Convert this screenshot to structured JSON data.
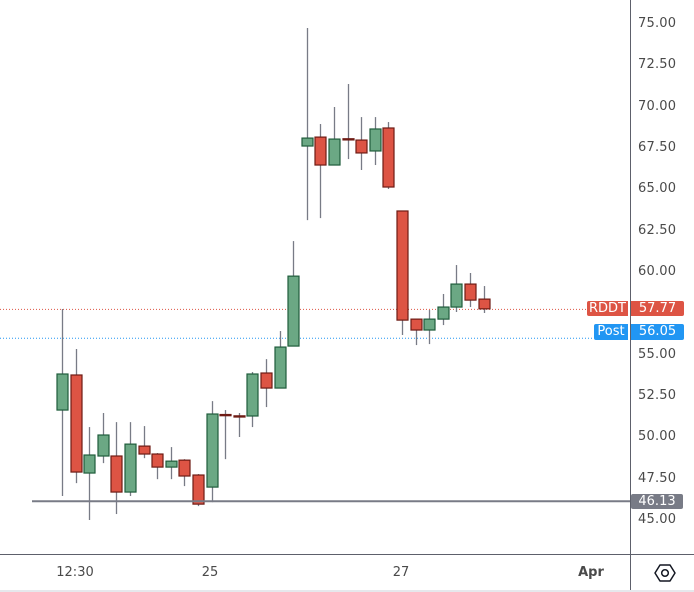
{
  "chart_data": {
    "type": "candlestick",
    "title": "",
    "symbol": "RDDT",
    "xlabel": "",
    "ylabel": "",
    "ylim": [
      44.0,
      76.0
    ],
    "grid": false,
    "y_ticks": [
      "75.00",
      "72.50",
      "70.00",
      "67.50",
      "65.00",
      "62.50",
      "60.00",
      "55.00",
      "52.50",
      "50.00",
      "47.50",
      "45.00"
    ],
    "x_ticks": [
      {
        "label": "12:30",
        "candle_index": 1
      },
      {
        "label": "25",
        "candle_index": 11
      },
      {
        "label": "27",
        "candle_index": 25
      },
      {
        "label": "Apr",
        "candle_index": 39
      }
    ],
    "candles": [
      {
        "o": 51.65,
        "h": 57.76,
        "l": 46.45,
        "c": 53.83
      },
      {
        "o": 53.77,
        "h": 55.34,
        "l": 47.23,
        "c": 47.9
      },
      {
        "o": 47.84,
        "h": 50.62,
        "l": 45.0,
        "c": 48.93
      },
      {
        "o": 48.87,
        "h": 51.47,
        "l": 48.44,
        "c": 50.14
      },
      {
        "o": 48.87,
        "h": 50.92,
        "l": 45.36,
        "c": 46.69
      },
      {
        "o": 46.69,
        "h": 50.92,
        "l": 46.45,
        "c": 49.59
      },
      {
        "o": 49.47,
        "h": 50.68,
        "l": 48.74,
        "c": 48.99
      },
      {
        "o": 48.99,
        "h": 49.05,
        "l": 47.47,
        "c": 48.2
      },
      {
        "o": 48.2,
        "h": 49.41,
        "l": 47.47,
        "c": 48.56
      },
      {
        "o": 48.62,
        "h": 48.68,
        "l": 47.05,
        "c": 47.66
      },
      {
        "o": 47.72,
        "h": 47.78,
        "l": 45.84,
        "c": 45.96
      },
      {
        "o": 46.99,
        "h": 52.19,
        "l": 46.08,
        "c": 51.41
      },
      {
        "o": 51.38,
        "h": 51.65,
        "l": 48.68,
        "c": 51.32
      },
      {
        "o": 51.3,
        "h": 51.47,
        "l": 50.02,
        "c": 51.26
      },
      {
        "o": 51.29,
        "h": 53.95,
        "l": 50.62,
        "c": 53.83
      },
      {
        "o": 53.89,
        "h": 54.73,
        "l": 51.83,
        "c": 52.98
      },
      {
        "o": 52.98,
        "h": 56.43,
        "l": 52.98,
        "c": 55.46
      },
      {
        "o": 55.52,
        "h": 61.87,
        "l": 55.52,
        "c": 59.75
      },
      {
        "o": 67.62,
        "h": 74.76,
        "l": 63.14,
        "c": 68.1
      },
      {
        "o": 68.16,
        "h": 68.95,
        "l": 63.26,
        "c": 66.47
      },
      {
        "o": 66.47,
        "h": 69.98,
        "l": 66.47,
        "c": 68.04
      },
      {
        "o": 68.06,
        "h": 71.37,
        "l": 66.83,
        "c": 68.02
      },
      {
        "o": 67.98,
        "h": 69.37,
        "l": 66.17,
        "c": 67.2
      },
      {
        "o": 67.32,
        "h": 69.37,
        "l": 66.47,
        "c": 68.65
      },
      {
        "o": 68.71,
        "h": 69.07,
        "l": 65.02,
        "c": 65.14
      },
      {
        "o": 63.69,
        "h": 63.69,
        "l": 56.19,
        "c": 57.09
      },
      {
        "o": 57.15,
        "h": 57.15,
        "l": 55.58,
        "c": 56.49
      },
      {
        "o": 56.49,
        "h": 57.7,
        "l": 55.64,
        "c": 57.15
      },
      {
        "o": 57.15,
        "h": 58.67,
        "l": 56.79,
        "c": 57.88
      },
      {
        "o": 57.88,
        "h": 60.42,
        "l": 57.58,
        "c": 59.27
      },
      {
        "o": 59.27,
        "h": 59.94,
        "l": 57.88,
        "c": 58.3
      },
      {
        "o": 58.36,
        "h": 59.15,
        "l": 57.52,
        "c": 57.77
      }
    ],
    "horizontal_line": {
      "price": 46.13,
      "label": "46.13"
    },
    "last_price": {
      "price": 57.77,
      "label": "57.77",
      "tag": "RDDT"
    },
    "post_market": {
      "price": 56.05,
      "label": "56.05",
      "tag": "Post"
    }
  },
  "time_axis": {
    "labels": [
      "12:30",
      "25",
      "27",
      "Apr"
    ]
  },
  "price_axis": {
    "symbol_tag": "RDDT",
    "last_price": "57.77",
    "post_tag": "Post",
    "post_price": "56.05",
    "hline_price": "46.13"
  },
  "icons": {
    "settings": "settings-hexagon-icon"
  },
  "colors": {
    "up_fill": "#6ba884",
    "up_border": "#1f5c3b",
    "down_fill": "#dd5444",
    "down_border": "#6e1b14",
    "wick": "#787b86",
    "last_price": "#dd5444",
    "post_market": "#2196f3",
    "hline": "#787b86"
  }
}
